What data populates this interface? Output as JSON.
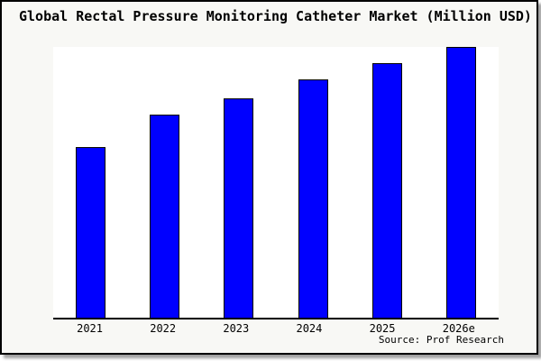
{
  "header": {
    "title": "Global Rectal Pressure Monitoring Catheter Market (Million USD)"
  },
  "footer": {
    "source": "Source: Prof Research"
  },
  "colors": {
    "bar_fill": "#0000ff",
    "bar_border": "#000000",
    "plot_background": "#ffffff",
    "canvas_background": "#f8f8f5",
    "frame_border": "#000000",
    "axis": "#000000",
    "text": "#000000"
  },
  "chart_data": {
    "type": "bar",
    "title": "Global Rectal Pressure Monitoring Catheter Market (Million USD)",
    "categories": [
      "2021",
      "2022",
      "2023",
      "2024",
      "2025",
      "2026e"
    ],
    "values": [
      63,
      75,
      81,
      88,
      94,
      100
    ],
    "xlabel": "",
    "ylabel": "",
    "ylim": [
      0,
      100
    ],
    "y_axis_visible": false,
    "grid": false,
    "legend": "none",
    "series_color": "#0000ff",
    "source": "Source: Prof Research"
  }
}
